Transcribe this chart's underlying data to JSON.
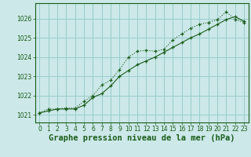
{
  "title": "Graphe pression niveau de la mer (hPa)",
  "bg_color": "#cce8e8",
  "grid_color": "#99cccc",
  "line_color": "#1a5c1a",
  "xlim": [
    -0.5,
    23.5
  ],
  "ylim": [
    1020.6,
    1026.8
  ],
  "yticks": [
    1021,
    1022,
    1023,
    1024,
    1025,
    1026
  ],
  "xticks": [
    0,
    1,
    2,
    3,
    4,
    5,
    6,
    7,
    8,
    9,
    10,
    11,
    12,
    13,
    14,
    15,
    16,
    17,
    18,
    19,
    20,
    21,
    22,
    23
  ],
  "line1_x": [
    0,
    1,
    2,
    3,
    4,
    5,
    6,
    7,
    8,
    9,
    10,
    11,
    12,
    13,
    14,
    15,
    16,
    17,
    18,
    19,
    20,
    21,
    22,
    23
  ],
  "line1_y": [
    1021.1,
    1021.3,
    1021.3,
    1021.35,
    1021.35,
    1021.7,
    1022.0,
    1022.55,
    1022.8,
    1023.35,
    1024.0,
    1024.3,
    1024.35,
    1024.3,
    1024.4,
    1024.9,
    1025.2,
    1025.5,
    1025.7,
    1025.8,
    1025.95,
    1026.35,
    1025.95,
    1025.8
  ],
  "line2_x": [
    0,
    1,
    2,
    3,
    4,
    5,
    6,
    7,
    8,
    9,
    10,
    11,
    12,
    13,
    14,
    15,
    16,
    17,
    18,
    19,
    20,
    21,
    22,
    23
  ],
  "line2_y": [
    1021.1,
    1021.2,
    1021.3,
    1021.3,
    1021.3,
    1021.5,
    1021.9,
    1022.1,
    1022.5,
    1023.0,
    1023.3,
    1023.6,
    1023.8,
    1024.0,
    1024.25,
    1024.5,
    1024.75,
    1025.0,
    1025.2,
    1025.45,
    1025.7,
    1025.95,
    1026.1,
    1025.85
  ],
  "tick_fontsize": 5.5,
  "title_fontsize": 7.5
}
